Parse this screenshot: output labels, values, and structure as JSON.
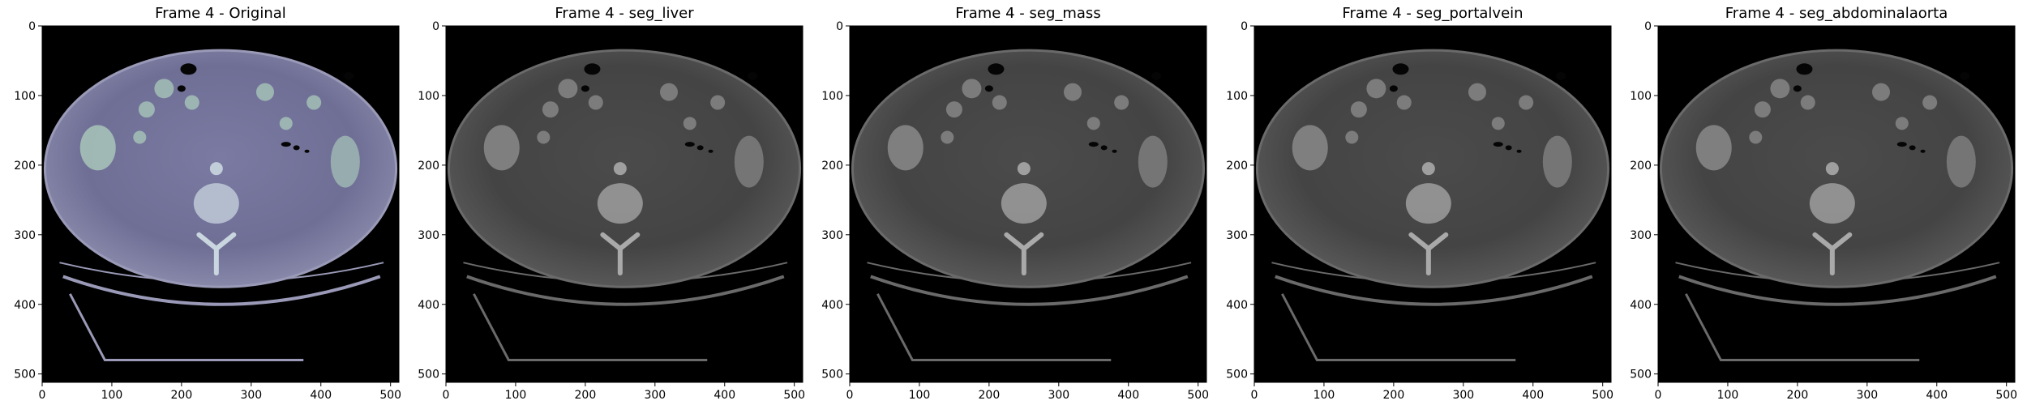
{
  "panels": [
    {
      "title": "Frame 4 - Original",
      "tint": "original"
    },
    {
      "title": "Frame 4 - seg_liver",
      "tint": "gray"
    },
    {
      "title": "Frame 4 - seg_mass",
      "tint": "gray"
    },
    {
      "title": "Frame 4 - seg_portalvein",
      "tint": "gray"
    },
    {
      "title": "Frame 4 - seg_abdominalaorta",
      "tint": "gray"
    }
  ],
  "axes": {
    "x_ticks": [
      "0",
      "100",
      "200",
      "300",
      "400",
      "500"
    ],
    "y_ticks": [
      "0",
      "100",
      "200",
      "300",
      "400",
      "500"
    ],
    "x_tick_values": [
      0,
      100,
      200,
      300,
      400,
      500
    ],
    "y_tick_values": [
      0,
      100,
      200,
      300,
      400,
      500
    ],
    "range": [
      0,
      512
    ]
  },
  "colors": {
    "original_body": "#6f6f96",
    "original_highlight": "#c9d6df",
    "gray_body": "#464646",
    "gray_highlight": "#a9a9a9",
    "background": "#000000"
  }
}
